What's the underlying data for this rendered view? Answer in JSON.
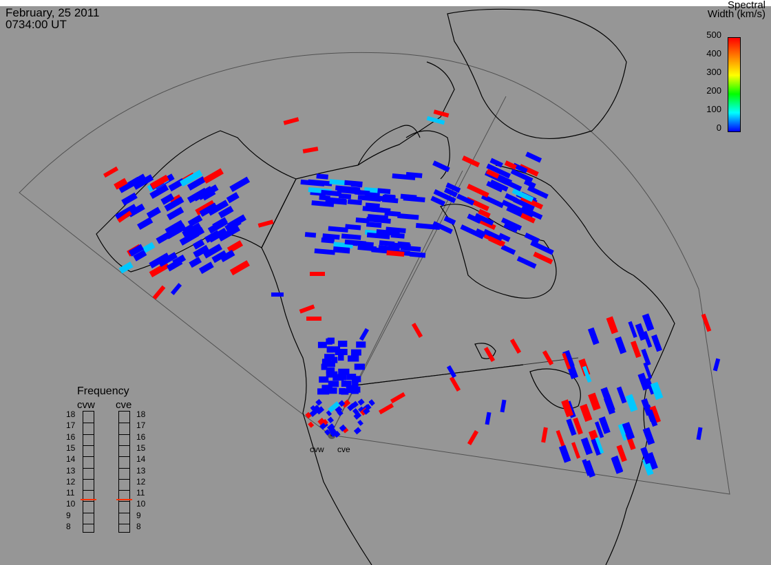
{
  "header": {
    "date": "February, 25 2011",
    "time": "0734:00 UT"
  },
  "colorbar": {
    "title_line1": "Spectral",
    "title_line2": "Width (km/s)",
    "ticks": [
      "500",
      "400",
      "300",
      "200",
      "100",
      "0"
    ],
    "stops": [
      "#ff0000",
      "#ff8000",
      "#ffff00",
      "#00ff00",
      "#00ffff",
      "#0000ff"
    ]
  },
  "frequency_panel": {
    "title": "Frequency",
    "left_radar": "cvw",
    "right_radar": "cve",
    "ticks": [
      "18",
      "17",
      "16",
      "15",
      "14",
      "13",
      "12",
      "11",
      "10",
      "9",
      "8"
    ],
    "cvw_value_mhz": 10.5,
    "cve_value_mhz": 10.5,
    "marker_color": "#ff3000"
  },
  "radars": {
    "west": "cvw",
    "east": "cve"
  },
  "colors": {
    "low": "#0000ff",
    "mid": "#00c8ff",
    "high": "#ff0000"
  }
}
